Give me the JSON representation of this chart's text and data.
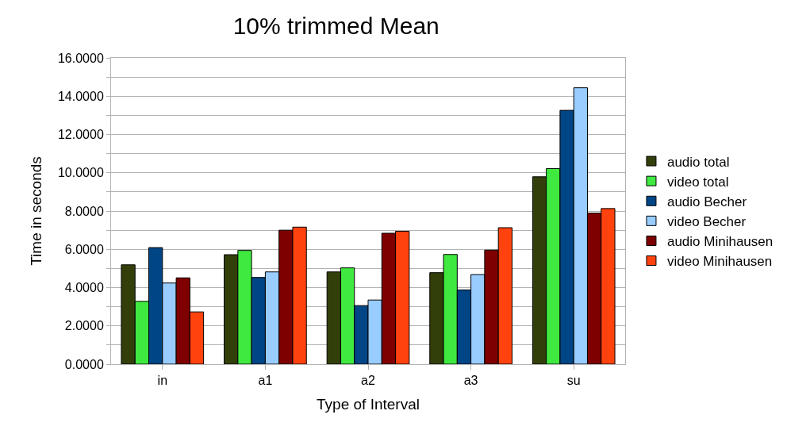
{
  "chart_data": {
    "type": "bar",
    "title": "10% trimmed Mean",
    "xlabel": "Type of Interval",
    "ylabel": "Time in seconds",
    "categories": [
      "in",
      "a1",
      "a2",
      "a3",
      "su"
    ],
    "series": [
      {
        "name": "audio total",
        "color": "#333f0a",
        "values": [
          5.19,
          5.72,
          4.82,
          4.78,
          9.79
        ]
      },
      {
        "name": "video total",
        "color": "#3fe93f",
        "values": [
          3.28,
          5.94,
          5.03,
          5.73,
          10.22
        ]
      },
      {
        "name": "audio Becher",
        "color": "#004586",
        "values": [
          6.09,
          4.53,
          3.06,
          3.88,
          13.26
        ]
      },
      {
        "name": "video Becher",
        "color": "#99ccff",
        "values": [
          4.24,
          4.82,
          3.35,
          4.68,
          14.44
        ]
      },
      {
        "name": "audio Minihausen",
        "color": "#7e0000",
        "values": [
          4.51,
          7.0,
          6.84,
          5.96,
          7.89
        ]
      },
      {
        "name": "video Minihausen",
        "color": "#ff420e",
        "values": [
          2.73,
          7.16,
          6.94,
          7.13,
          8.13
        ]
      }
    ],
    "ylim": [
      0,
      16
    ],
    "yticks": [
      {
        "value": 0,
        "label": "0.0000"
      },
      {
        "value": 1,
        "label": null
      },
      {
        "value": 2,
        "label": "2.0000"
      },
      {
        "value": 3,
        "label": null
      },
      {
        "value": 4,
        "label": "4.0000"
      },
      {
        "value": 5,
        "label": null
      },
      {
        "value": 6,
        "label": "6.0000"
      },
      {
        "value": 7,
        "label": null
      },
      {
        "value": 8,
        "label": "8.0000"
      },
      {
        "value": 9,
        "label": null
      },
      {
        "value": 10,
        "label": "10.0000"
      },
      {
        "value": 11,
        "label": null
      },
      {
        "value": 12,
        "label": "12.0000"
      },
      {
        "value": 13,
        "label": null
      },
      {
        "value": 14,
        "label": "14.0000"
      },
      {
        "value": 15,
        "label": null
      },
      {
        "value": 16,
        "label": "16.0000"
      }
    ],
    "grid": "y",
    "legend": "right"
  }
}
